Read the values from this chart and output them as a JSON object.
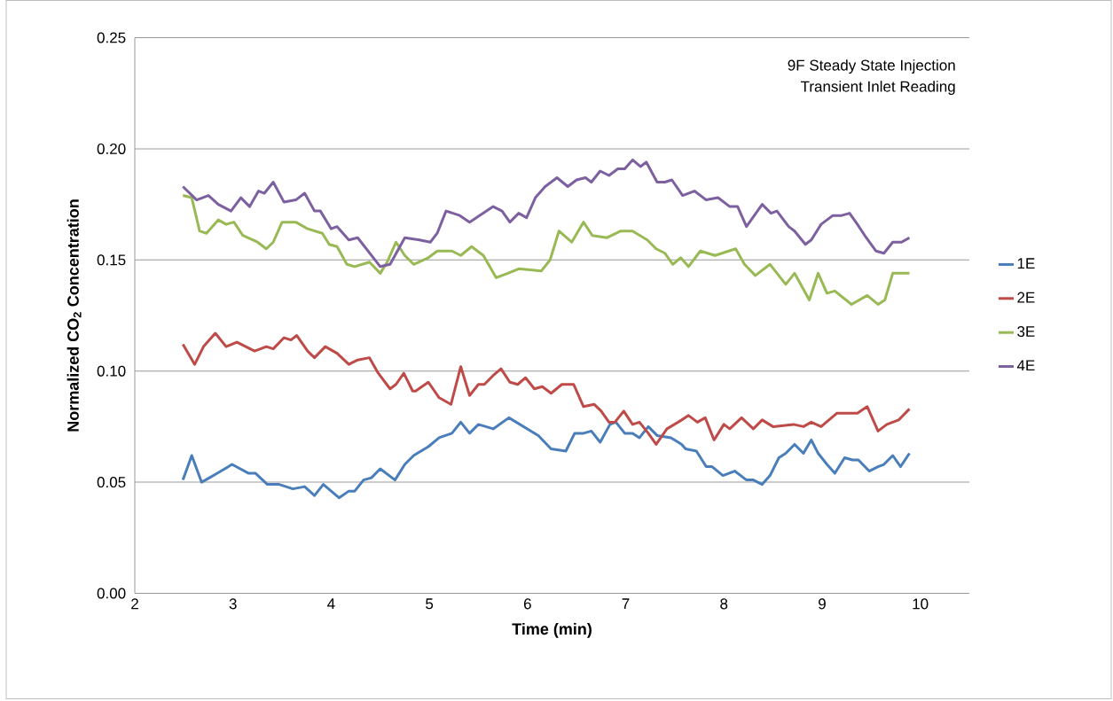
{
  "chart_data": {
    "type": "line",
    "xlabel": "Time (min)",
    "ylabel": "Normalized CO$_{2}$ Concentration",
    "annotations": [
      "9F Steady State Injection",
      "Transient Inlet Reading"
    ],
    "xlim": [
      2,
      10.5
    ],
    "xticks": [
      2,
      3,
      4,
      5,
      6,
      7,
      8,
      9,
      10
    ],
    "ylim": [
      0,
      0.25
    ],
    "yticks": [
      {
        "value": 0,
        "label": "0.00"
      },
      {
        "value": 0.05,
        "label": "0.05"
      },
      {
        "value": 0.1,
        "label": "0.10"
      },
      {
        "value": 0.15,
        "label": "0.15"
      },
      {
        "value": 0.2,
        "label": "0.20"
      },
      {
        "value": 0.25,
        "label": "0.25"
      }
    ],
    "grid": "y",
    "legend": "right",
    "series": [
      {
        "name": "1E",
        "color": "#4a7ebb",
        "x": [
          2.49,
          2.58,
          2.68,
          2.76,
          2.84,
          2.99,
          3.16,
          3.23,
          3.35,
          3.47,
          3.61,
          3.73,
          3.83,
          3.92,
          4.08,
          4.18,
          4.24,
          4.33,
          4.41,
          4.5,
          4.65,
          4.75,
          4.84,
          4.99,
          5.1,
          5.23,
          5.32,
          5.41,
          5.5,
          5.65,
          5.81,
          5.96,
          6.11,
          6.24,
          6.39,
          6.48,
          6.57,
          6.65,
          6.74,
          6.84,
          6.9,
          6.99,
          7.07,
          7.14,
          7.23,
          7.32,
          7.46,
          7.57,
          7.61,
          7.72,
          7.82,
          7.88,
          7.99,
          8.11,
          8.23,
          8.3,
          8.39,
          8.47,
          8.56,
          8.63,
          8.72,
          8.81,
          8.89,
          8.96,
          9.05,
          9.13,
          9.23,
          9.31,
          9.37,
          9.48,
          9.57,
          9.63,
          9.72,
          9.8,
          9.89
        ],
        "values": [
          0.051,
          0.062,
          0.05,
          0.052,
          0.054,
          0.058,
          0.054,
          0.054,
          0.049,
          0.049,
          0.047,
          0.048,
          0.044,
          0.049,
          0.043,
          0.046,
          0.046,
          0.051,
          0.052,
          0.056,
          0.051,
          0.058,
          0.062,
          0.066,
          0.07,
          0.072,
          0.077,
          0.072,
          0.076,
          0.074,
          0.079,
          0.075,
          0.071,
          0.065,
          0.064,
          0.072,
          0.072,
          0.073,
          0.068,
          0.076,
          0.077,
          0.072,
          0.072,
          0.07,
          0.075,
          0.071,
          0.07,
          0.067,
          0.065,
          0.064,
          0.057,
          0.057,
          0.053,
          0.055,
          0.051,
          0.051,
          0.049,
          0.053,
          0.061,
          0.063,
          0.067,
          0.063,
          0.069,
          0.063,
          0.058,
          0.054,
          0.061,
          0.06,
          0.06,
          0.055,
          0.057,
          0.058,
          0.062,
          0.057,
          0.063
        ]
      },
      {
        "name": "2E",
        "color": "#be4b48",
        "x": [
          2.49,
          2.61,
          2.7,
          2.82,
          2.93,
          3.04,
          3.22,
          3.34,
          3.41,
          3.52,
          3.59,
          3.65,
          3.76,
          3.83,
          3.94,
          4.06,
          4.18,
          4.27,
          4.39,
          4.48,
          4.6,
          4.66,
          4.74,
          4.83,
          4.86,
          4.99,
          5.1,
          5.22,
          5.32,
          5.41,
          5.5,
          5.56,
          5.65,
          5.73,
          5.82,
          5.9,
          5.98,
          6.07,
          6.15,
          6.24,
          6.35,
          6.47,
          6.57,
          6.68,
          6.75,
          6.83,
          6.89,
          6.98,
          7.07,
          7.14,
          7.23,
          7.31,
          7.42,
          7.57,
          7.64,
          7.73,
          7.81,
          7.9,
          8.0,
          8.06,
          8.18,
          8.3,
          8.39,
          8.5,
          8.71,
          8.81,
          8.89,
          8.99,
          9.15,
          9.36,
          9.46,
          9.57,
          9.66,
          9.78,
          9.89
        ],
        "values": [
          0.112,
          0.103,
          0.111,
          0.117,
          0.111,
          0.113,
          0.109,
          0.111,
          0.11,
          0.115,
          0.114,
          0.116,
          0.109,
          0.106,
          0.111,
          0.108,
          0.103,
          0.105,
          0.106,
          0.099,
          0.092,
          0.094,
          0.099,
          0.091,
          0.091,
          0.095,
          0.088,
          0.085,
          0.102,
          0.089,
          0.094,
          0.094,
          0.098,
          0.101,
          0.095,
          0.094,
          0.097,
          0.092,
          0.093,
          0.09,
          0.094,
          0.094,
          0.084,
          0.085,
          0.082,
          0.077,
          0.077,
          0.082,
          0.076,
          0.077,
          0.072,
          0.067,
          0.074,
          0.078,
          0.08,
          0.077,
          0.079,
          0.069,
          0.076,
          0.074,
          0.079,
          0.074,
          0.078,
          0.075,
          0.076,
          0.075,
          0.077,
          0.075,
          0.081,
          0.081,
          0.084,
          0.073,
          0.076,
          0.078,
          0.083
        ]
      },
      {
        "name": "3E",
        "color": "#98b954",
        "x": [
          2.49,
          2.58,
          2.66,
          2.73,
          2.85,
          2.93,
          3.01,
          3.1,
          3.25,
          3.34,
          3.41,
          3.5,
          3.64,
          3.76,
          3.91,
          3.98,
          4.06,
          4.16,
          4.24,
          4.39,
          4.5,
          4.57,
          4.66,
          4.75,
          4.84,
          4.99,
          5.08,
          5.23,
          5.32,
          5.43,
          5.55,
          5.68,
          5.8,
          5.91,
          6.14,
          6.23,
          6.32,
          6.45,
          6.57,
          6.66,
          6.81,
          6.95,
          7.07,
          7.22,
          7.31,
          7.4,
          7.48,
          7.56,
          7.64,
          7.76,
          7.91,
          8.12,
          8.21,
          8.32,
          8.47,
          8.63,
          8.72,
          8.87,
          8.96,
          9.05,
          9.13,
          9.3,
          9.46,
          9.57,
          9.64,
          9.72,
          9.89
        ],
        "values": [
          0.179,
          0.178,
          0.163,
          0.162,
          0.168,
          0.166,
          0.167,
          0.161,
          0.158,
          0.155,
          0.158,
          0.167,
          0.167,
          0.164,
          0.162,
          0.157,
          0.156,
          0.148,
          0.147,
          0.149,
          0.144,
          0.149,
          0.158,
          0.152,
          0.148,
          0.151,
          0.154,
          0.154,
          0.152,
          0.156,
          0.152,
          0.142,
          0.144,
          0.146,
          0.145,
          0.15,
          0.163,
          0.158,
          0.167,
          0.161,
          0.16,
          0.163,
          0.163,
          0.159,
          0.155,
          0.153,
          0.148,
          0.151,
          0.147,
          0.154,
          0.152,
          0.155,
          0.148,
          0.143,
          0.148,
          0.139,
          0.144,
          0.132,
          0.144,
          0.135,
          0.136,
          0.13,
          0.134,
          0.13,
          0.132,
          0.144,
          0.144
        ]
      },
      {
        "name": "4E",
        "color": "#7d60a0",
        "x": [
          2.49,
          2.63,
          2.75,
          2.85,
          2.98,
          3.08,
          3.17,
          3.26,
          3.32,
          3.41,
          3.52,
          3.64,
          3.73,
          3.83,
          3.89,
          4.0,
          4.06,
          4.18,
          4.27,
          4.5,
          4.6,
          4.75,
          4.9,
          5.01,
          5.08,
          5.17,
          5.31,
          5.41,
          5.65,
          5.74,
          5.82,
          5.91,
          5.99,
          6.08,
          6.18,
          6.3,
          6.41,
          6.5,
          6.59,
          6.65,
          6.74,
          6.83,
          6.92,
          6.99,
          7.07,
          7.15,
          7.21,
          7.32,
          7.4,
          7.47,
          7.58,
          7.7,
          7.82,
          7.94,
          8.06,
          8.14,
          8.23,
          8.39,
          8.48,
          8.54,
          8.66,
          8.72,
          8.83,
          8.89,
          8.99,
          9.11,
          9.2,
          9.28,
          9.36,
          9.45,
          9.55,
          9.63,
          9.72,
          9.81,
          9.89
        ],
        "values": [
          0.183,
          0.177,
          0.179,
          0.175,
          0.172,
          0.178,
          0.174,
          0.181,
          0.18,
          0.185,
          0.176,
          0.177,
          0.18,
          0.172,
          0.172,
          0.164,
          0.165,
          0.159,
          0.16,
          0.147,
          0.148,
          0.16,
          0.159,
          0.158,
          0.162,
          0.172,
          0.17,
          0.167,
          0.174,
          0.172,
          0.167,
          0.171,
          0.169,
          0.178,
          0.183,
          0.187,
          0.183,
          0.186,
          0.187,
          0.185,
          0.19,
          0.188,
          0.191,
          0.191,
          0.195,
          0.192,
          0.194,
          0.185,
          0.185,
          0.186,
          0.179,
          0.181,
          0.177,
          0.178,
          0.174,
          0.174,
          0.165,
          0.175,
          0.171,
          0.172,
          0.165,
          0.163,
          0.157,
          0.159,
          0.166,
          0.17,
          0.17,
          0.171,
          0.166,
          0.16,
          0.154,
          0.153,
          0.158,
          0.158,
          0.16
        ]
      }
    ]
  }
}
